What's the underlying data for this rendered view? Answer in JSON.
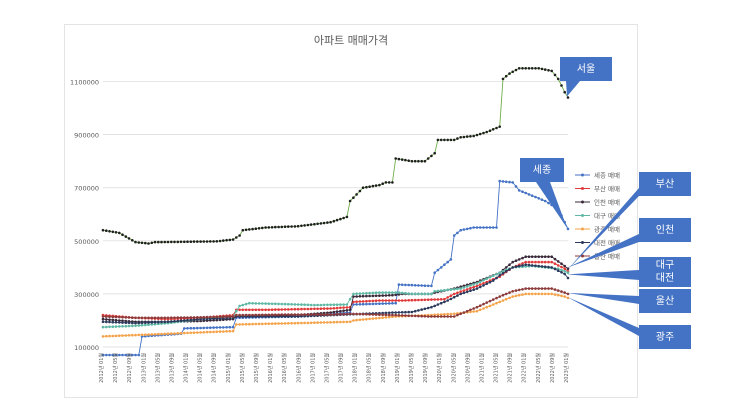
{
  "chart_data": {
    "type": "line",
    "title": "아파트 매매가격",
    "y_ticks": [
      "100000",
      "300000",
      "500000",
      "700000",
      "900000",
      "1100000"
    ],
    "ylim": [
      100000,
      1200000
    ],
    "x_tick_labels": [
      "2012년 01월",
      "2012년 05월",
      "2012년 09월",
      "2013년 01월",
      "2013년 05월",
      "2013년 09월",
      "2014년 01월",
      "2014년 05월",
      "2014년 09월",
      "2015년 01월",
      "2015년 05월",
      "2015년 09월",
      "2016년 01월",
      "2016년 05월",
      "2016년 09월",
      "2017년 01월",
      "2017년 05월",
      "2017년 09월",
      "2018년 01월",
      "2018년 05월",
      "2018년 09월",
      "2019년 01월",
      "2019년 05월",
      "2019년 09월",
      "2020년 01월",
      "2020년 05월",
      "2020년 09월",
      "2021년 01월",
      "2021년 05월",
      "2021년 09월",
      "2022년 01월",
      "2022년 05월",
      "2022년 09월",
      "2023년 01월"
    ],
    "grid": true,
    "legend_position": "right",
    "series": [
      {
        "name": "서울 매매",
        "legend": false,
        "color": "#70ad47",
        "marker": "#1f1f1f",
        "keypoints": [
          [
            0,
            540000
          ],
          [
            5,
            530000
          ],
          [
            10,
            495000
          ],
          [
            14,
            490000
          ],
          [
            16,
            495000
          ],
          [
            35,
            498000
          ],
          [
            40,
            505000
          ],
          [
            42,
            520000
          ],
          [
            43,
            540000
          ],
          [
            50,
            550000
          ],
          [
            60,
            555000
          ],
          [
            70,
            570000
          ],
          [
            75,
            590000
          ],
          [
            76,
            650000
          ],
          [
            80,
            700000
          ],
          [
            85,
            710000
          ],
          [
            87,
            720000
          ],
          [
            89,
            720000
          ],
          [
            90,
            810000
          ],
          [
            95,
            800000
          ],
          [
            99,
            800000
          ],
          [
            102,
            830000
          ],
          [
            103,
            880000
          ],
          [
            108,
            880000
          ],
          [
            110,
            890000
          ],
          [
            114,
            895000
          ],
          [
            118,
            910000
          ],
          [
            122,
            930000
          ],
          [
            123,
            1110000
          ],
          [
            125,
            1130000
          ],
          [
            128,
            1150000
          ],
          [
            134,
            1150000
          ],
          [
            138,
            1140000
          ],
          [
            140,
            1110000
          ],
          [
            142,
            1060000
          ],
          [
            143,
            1040000
          ]
        ]
      },
      {
        "name": "세종 매매",
        "legend": true,
        "color": "#4472c4",
        "marker": "#4472c4",
        "keypoints": [
          [
            11,
            70000
          ],
          [
            12,
            140000
          ],
          [
            24,
            150000
          ],
          [
            25,
            170000
          ],
          [
            40,
            175000
          ],
          [
            41,
            210000
          ],
          [
            60,
            215000
          ],
          [
            76,
            230000
          ],
          [
            77,
            260000
          ],
          [
            90,
            265000
          ],
          [
            91,
            335000
          ],
          [
            101,
            330000
          ],
          [
            102,
            380000
          ],
          [
            105,
            410000
          ],
          [
            107,
            430000
          ],
          [
            108,
            520000
          ],
          [
            110,
            540000
          ],
          [
            114,
            550000
          ],
          [
            121,
            550000
          ],
          [
            122,
            725000
          ],
          [
            126,
            720000
          ],
          [
            128,
            690000
          ],
          [
            132,
            670000
          ],
          [
            136,
            650000
          ],
          [
            140,
            620000
          ],
          [
            142,
            570000
          ],
          [
            143,
            545000
          ]
        ]
      },
      {
        "name": "부산 매매",
        "legend": true,
        "color": "#e03a3a",
        "marker": "#e03a3a",
        "keypoints": [
          [
            0,
            220000
          ],
          [
            10,
            210000
          ],
          [
            20,
            205000
          ],
          [
            30,
            210000
          ],
          [
            40,
            220000
          ],
          [
            41,
            240000
          ],
          [
            50,
            240000
          ],
          [
            70,
            245000
          ],
          [
            76,
            250000
          ],
          [
            77,
            270000
          ],
          [
            85,
            275000
          ],
          [
            92,
            275000
          ],
          [
            105,
            280000
          ],
          [
            108,
            300000
          ],
          [
            115,
            330000
          ],
          [
            122,
            365000
          ],
          [
            126,
            400000
          ],
          [
            130,
            420000
          ],
          [
            138,
            420000
          ],
          [
            142,
            395000
          ],
          [
            143,
            385000
          ]
        ]
      },
      {
        "name": "인천 매매",
        "legend": true,
        "color": "#3a2a3a",
        "marker": "#3a2a3a",
        "keypoints": [
          [
            0,
            205000
          ],
          [
            10,
            195000
          ],
          [
            20,
            195000
          ],
          [
            30,
            198000
          ],
          [
            40,
            205000
          ],
          [
            41,
            215000
          ],
          [
            60,
            220000
          ],
          [
            70,
            230000
          ],
          [
            76,
            240000
          ],
          [
            77,
            290000
          ],
          [
            89,
            295000
          ],
          [
            92,
            300000
          ],
          [
            101,
            300000
          ],
          [
            102,
            305000
          ],
          [
            108,
            320000
          ],
          [
            115,
            345000
          ],
          [
            122,
            380000
          ],
          [
            126,
            420000
          ],
          [
            130,
            440000
          ],
          [
            138,
            440000
          ],
          [
            142,
            405000
          ],
          [
            143,
            395000
          ]
        ]
      },
      {
        "name": "대구 매매",
        "legend": true,
        "color": "#5fb8a5",
        "marker": "#5fb8a5",
        "keypoints": [
          [
            0,
            175000
          ],
          [
            10,
            180000
          ],
          [
            20,
            190000
          ],
          [
            30,
            205000
          ],
          [
            40,
            215000
          ],
          [
            42,
            255000
          ],
          [
            45,
            265000
          ],
          [
            55,
            262000
          ],
          [
            65,
            258000
          ],
          [
            75,
            260000
          ],
          [
            77,
            300000
          ],
          [
            85,
            305000
          ],
          [
            91,
            305000
          ],
          [
            95,
            300000
          ],
          [
            101,
            300000
          ],
          [
            102,
            310000
          ],
          [
            110,
            320000
          ],
          [
            115,
            340000
          ],
          [
            122,
            380000
          ],
          [
            126,
            400000
          ],
          [
            132,
            405000
          ],
          [
            140,
            395000
          ],
          [
            143,
            380000
          ]
        ]
      },
      {
        "name": "광주 매매",
        "legend": true,
        "color": "#f5a34a",
        "marker": "#f5a34a",
        "keypoints": [
          [
            0,
            140000
          ],
          [
            10,
            145000
          ],
          [
            20,
            150000
          ],
          [
            40,
            160000
          ],
          [
            41,
            185000
          ],
          [
            60,
            190000
          ],
          [
            76,
            195000
          ],
          [
            77,
            200000
          ],
          [
            90,
            215000
          ],
          [
            100,
            220000
          ],
          [
            108,
            225000
          ],
          [
            115,
            235000
          ],
          [
            122,
            270000
          ],
          [
            126,
            290000
          ],
          [
            130,
            300000
          ],
          [
            138,
            300000
          ],
          [
            142,
            290000
          ],
          [
            143,
            285000
          ]
        ]
      },
      {
        "name": "대전 매매",
        "legend": true,
        "color": "#2b3a5c",
        "marker": "#2b3a5c",
        "keypoints": [
          [
            0,
            195000
          ],
          [
            10,
            190000
          ],
          [
            20,
            195000
          ],
          [
            30,
            205000
          ],
          [
            40,
            210000
          ],
          [
            41,
            215000
          ],
          [
            60,
            215000
          ],
          [
            70,
            220000
          ],
          [
            80,
            225000
          ],
          [
            90,
            230000
          ],
          [
            95,
            232000
          ],
          [
            101,
            250000
          ],
          [
            106,
            275000
          ],
          [
            110,
            300000
          ],
          [
            115,
            320000
          ],
          [
            120,
            350000
          ],
          [
            122,
            370000
          ],
          [
            126,
            400000
          ],
          [
            130,
            410000
          ],
          [
            138,
            400000
          ],
          [
            142,
            375000
          ],
          [
            143,
            360000
          ]
        ]
      },
      {
        "name": "울산 매매",
        "legend": true,
        "color": "#8c3a3a",
        "marker": "#8c3a3a",
        "keypoints": [
          [
            0,
            215000
          ],
          [
            10,
            210000
          ],
          [
            20,
            210000
          ],
          [
            30,
            212000
          ],
          [
            40,
            215000
          ],
          [
            41,
            220000
          ],
          [
            55,
            222000
          ],
          [
            70,
            222000
          ],
          [
            76,
            225000
          ],
          [
            90,
            220000
          ],
          [
            100,
            215000
          ],
          [
            108,
            215000
          ],
          [
            115,
            250000
          ],
          [
            122,
            290000
          ],
          [
            126,
            310000
          ],
          [
            130,
            320000
          ],
          [
            138,
            320000
          ],
          [
            142,
            305000
          ],
          [
            143,
            300000
          ]
        ]
      }
    ]
  },
  "callouts": [
    {
      "id": "seoul",
      "label": "서울"
    },
    {
      "id": "sejong",
      "label": "세종"
    },
    {
      "id": "busan",
      "label": "부산"
    },
    {
      "id": "incheon",
      "label": "인천"
    },
    {
      "id": "daegu-daejeon",
      "label": "대구\n대전"
    },
    {
      "id": "ulsan",
      "label": "울산"
    },
    {
      "id": "gwangju",
      "label": "광주"
    }
  ]
}
